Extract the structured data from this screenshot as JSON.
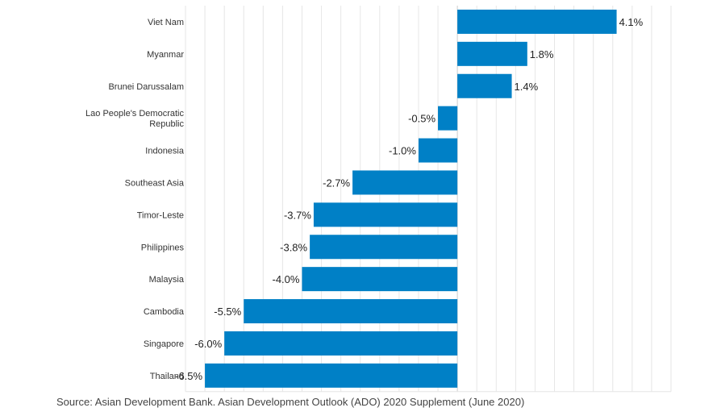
{
  "chart_data": {
    "type": "bar",
    "orientation": "horizontal",
    "categories": [
      "Viet Nam",
      "Myanmar",
      "Brunei Darussalam",
      "Lao People's Democratic Republic",
      "Indonesia",
      "Southeast Asia",
      "Timor-Leste",
      "Philippines",
      "Malaysia",
      "Cambodia",
      "Singapore",
      "Thailand"
    ],
    "values": [
      4.1,
      1.8,
      1.4,
      -0.5,
      -1.0,
      -2.7,
      -3.7,
      -3.8,
      -4.0,
      -5.5,
      -6.0,
      -6.5
    ],
    "value_labels": [
      "4.1%",
      "1.8%",
      "1.4%",
      "-0.5%",
      "-1.0%",
      "-2.7%",
      "-3.7%",
      "-3.8%",
      "-4.0%",
      "-5.5%",
      "-6.0%",
      "-6.5%"
    ],
    "title": "",
    "xlabel": "",
    "ylabel": "",
    "xlim": [
      -7,
      5.5
    ],
    "grid": true,
    "colors": {
      "bar": "#0080c6",
      "grid": "#e6e6e6",
      "zero_line": "#cccccc"
    }
  },
  "source_note": "Source: Asian Development Bank. Asian Development Outlook (ADO) 2020 Supplement (June 2020)"
}
